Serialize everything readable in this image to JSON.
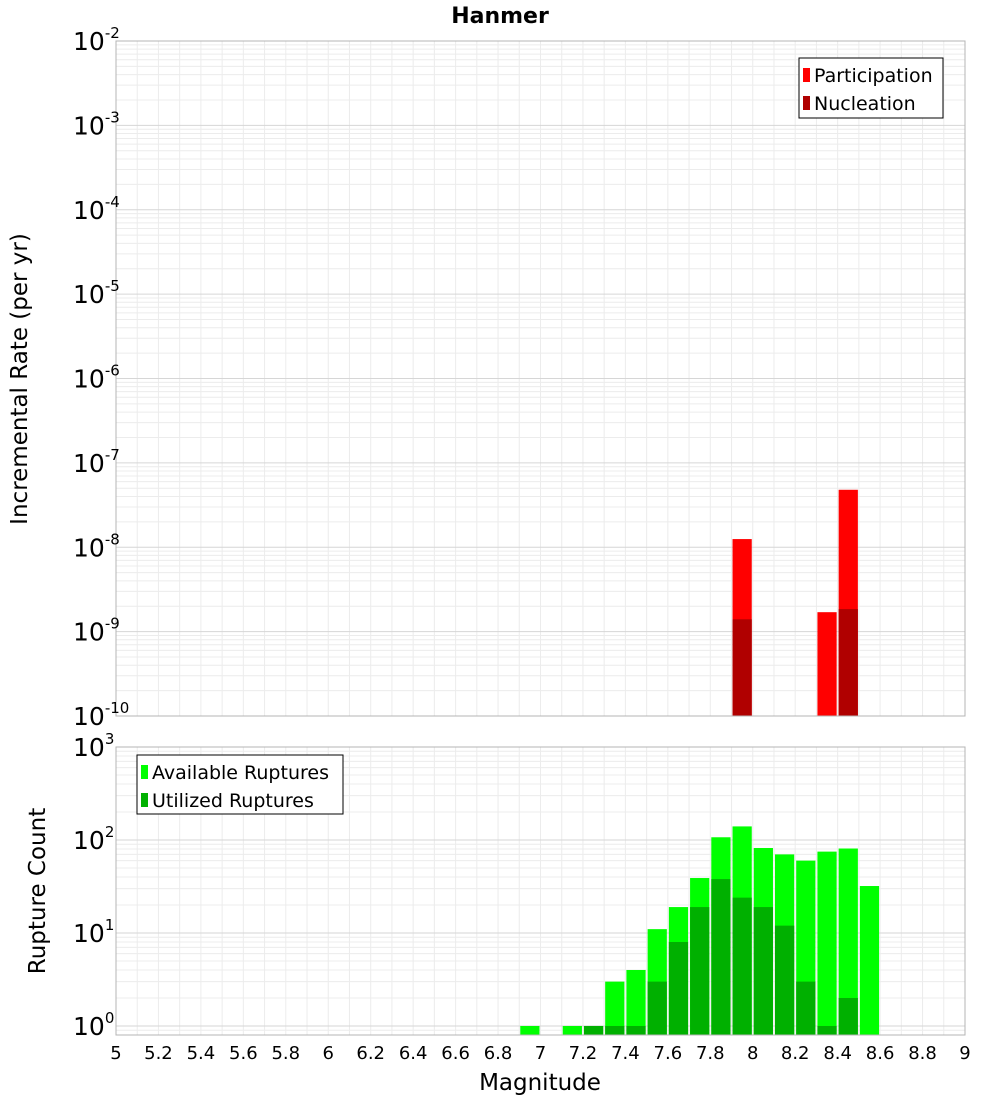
{
  "chart_data": [
    {
      "type": "bar",
      "title": "Hanmer",
      "xlabel": "",
      "ylabel": "Incremental Rate (per yr)",
      "xlim": [
        5,
        9
      ],
      "ylim": [
        1e-10,
        0.01
      ],
      "yscale": "log",
      "bin_width": 0.1,
      "x_ticks": [
        "5",
        "5.2",
        "5.4",
        "5.6",
        "5.8",
        "6",
        "6.2",
        "6.4",
        "6.6",
        "6.8",
        "7",
        "7.2",
        "7.4",
        "7.6",
        "7.8",
        "8",
        "8.2",
        "8.4",
        "8.6",
        "8.8",
        "9"
      ],
      "y_ticks": [
        {
          "base": "10",
          "exp": "-2"
        },
        {
          "base": "10",
          "exp": "-3"
        },
        {
          "base": "10",
          "exp": "-4"
        },
        {
          "base": "10",
          "exp": "-5"
        },
        {
          "base": "10",
          "exp": "-6"
        },
        {
          "base": "10",
          "exp": "-7"
        },
        {
          "base": "10",
          "exp": "-8"
        },
        {
          "base": "10",
          "exp": "-9"
        },
        {
          "base": "10",
          "exp": "-10"
        }
      ],
      "legend_position": "top-right",
      "series": [
        {
          "name": "Participation",
          "color": "#ff0000",
          "points": [
            {
              "x": 7.95,
              "y": 1.25e-08
            },
            {
              "x": 8.35,
              "y": 1.7e-09
            },
            {
              "x": 8.45,
              "y": 4.8e-08
            }
          ]
        },
        {
          "name": "Nucleation",
          "color": "#b00000",
          "points": [
            {
              "x": 7.95,
              "y": 1.4e-09
            },
            {
              "x": 8.45,
              "y": 1.85e-09
            }
          ]
        }
      ]
    },
    {
      "type": "bar",
      "xlabel": "Magnitude",
      "ylabel": "Rupture Count",
      "xlim": [
        5,
        9
      ],
      "ylim": [
        0.8,
        1000
      ],
      "yscale": "log",
      "bin_width": 0.1,
      "y_ticks": [
        {
          "base": "10",
          "exp": "3"
        },
        {
          "base": "10",
          "exp": "2"
        },
        {
          "base": "10",
          "exp": "1"
        },
        {
          "base": "10",
          "exp": "0"
        }
      ],
      "legend_position": "top-left",
      "series": [
        {
          "name": "Available Ruptures",
          "color": "#00ff00",
          "points": [
            {
              "x": 6.95,
              "y": 1
            },
            {
              "x": 7.15,
              "y": 1
            },
            {
              "x": 7.25,
              "y": 1
            },
            {
              "x": 7.35,
              "y": 3
            },
            {
              "x": 7.45,
              "y": 4
            },
            {
              "x": 7.55,
              "y": 11
            },
            {
              "x": 7.65,
              "y": 19
            },
            {
              "x": 7.75,
              "y": 39
            },
            {
              "x": 7.85,
              "y": 107
            },
            {
              "x": 7.95,
              "y": 140
            },
            {
              "x": 8.05,
              "y": 82
            },
            {
              "x": 8.15,
              "y": 70
            },
            {
              "x": 8.25,
              "y": 60
            },
            {
              "x": 8.35,
              "y": 75
            },
            {
              "x": 8.45,
              "y": 81
            },
            {
              "x": 8.55,
              "y": 32
            }
          ]
        },
        {
          "name": "Utilized Ruptures",
          "color": "#00b000",
          "points": [
            {
              "x": 7.25,
              "y": 1
            },
            {
              "x": 7.35,
              "y": 1
            },
            {
              "x": 7.45,
              "y": 1
            },
            {
              "x": 7.55,
              "y": 3
            },
            {
              "x": 7.65,
              "y": 8
            },
            {
              "x": 7.75,
              "y": 19
            },
            {
              "x": 7.85,
              "y": 38
            },
            {
              "x": 7.95,
              "y": 24
            },
            {
              "x": 8.05,
              "y": 19
            },
            {
              "x": 8.15,
              "y": 12
            },
            {
              "x": 8.25,
              "y": 3
            },
            {
              "x": 8.35,
              "y": 1
            },
            {
              "x": 8.45,
              "y": 2
            }
          ]
        }
      ]
    }
  ]
}
